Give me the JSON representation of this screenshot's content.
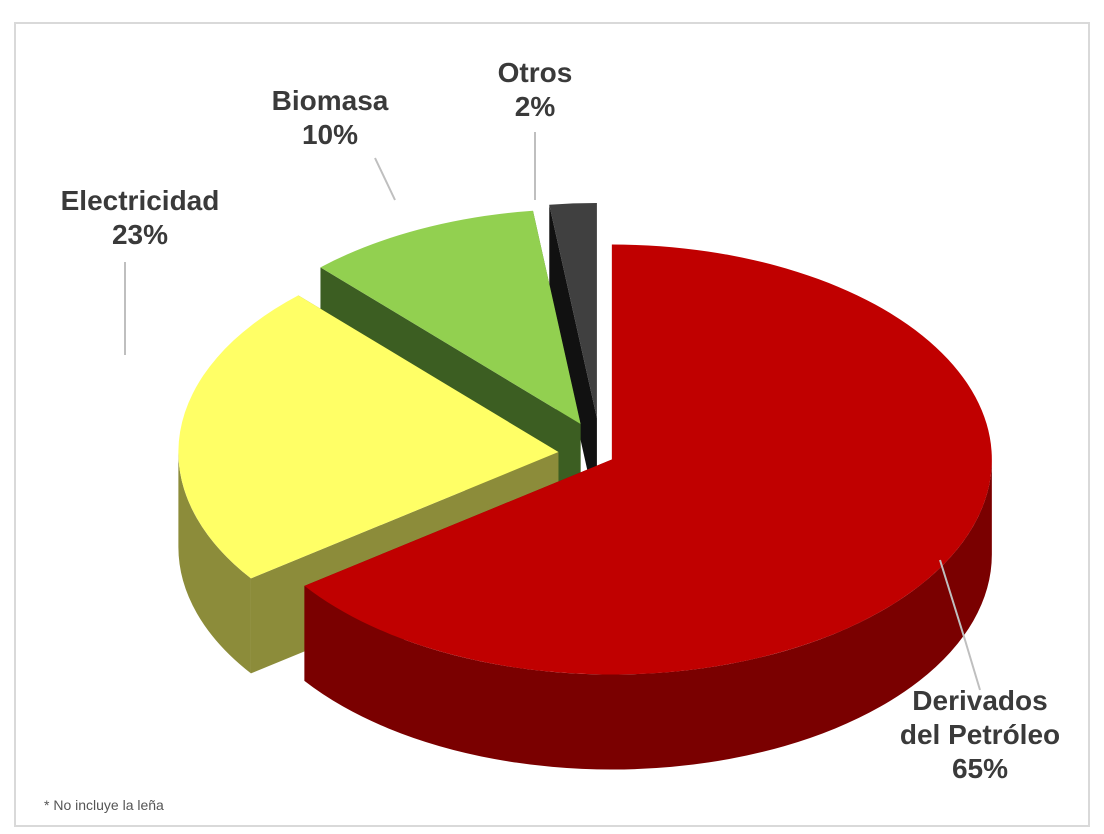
{
  "caption": "",
  "chart_data": {
    "type": "pie",
    "title": "",
    "slices": [
      {
        "label_line1": "Derivados",
        "label_line2": "del Petróleo",
        "percent_label": "65%",
        "value": 65,
        "color_top": "#c00000",
        "color_side": "#7a0000",
        "explode": 0.035
      },
      {
        "label_line1": "Electricidad",
        "label_line2": "",
        "percent_label": "23%",
        "value": 23,
        "color_top": "#ffff66",
        "color_side": "#8c8c3a",
        "explode": 0.11
      },
      {
        "label_line1": "Biomasa",
        "label_line2": "",
        "percent_label": "10%",
        "value": 10,
        "color_top": "#92d050",
        "color_side": "#3c5e22",
        "explode": 0.12
      },
      {
        "label_line1": "Otros",
        "label_line2": "",
        "percent_label": "2%",
        "value": 2,
        "color_top": "#404040",
        "color_side": "#111111",
        "explode": 0.13
      }
    ],
    "note": "* No incluye la leña",
    "legend": "none",
    "three_d": true
  }
}
